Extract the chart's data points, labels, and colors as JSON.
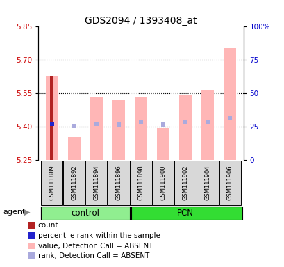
{
  "title": "GDS2094 / 1393408_at",
  "samples": [
    "GSM111889",
    "GSM111892",
    "GSM111894",
    "GSM111896",
    "GSM111898",
    "GSM111900",
    "GSM111902",
    "GSM111904",
    "GSM111906"
  ],
  "ylim_left": [
    5.25,
    5.85
  ],
  "ylim_right": [
    0,
    100
  ],
  "yticks_left": [
    5.25,
    5.4,
    5.55,
    5.7,
    5.85
  ],
  "yticks_right": [
    0,
    25,
    50,
    75,
    100
  ],
  "ytick_labels_right": [
    "0",
    "25",
    "50",
    "75",
    "100%"
  ],
  "dotted_lines": [
    5.4,
    5.55,
    5.7
  ],
  "bar_bottom": 5.25,
  "value_bars": [
    5.625,
    5.355,
    5.535,
    5.52,
    5.535,
    5.395,
    5.545,
    5.565,
    5.755
  ],
  "rank_markers": [
    5.415,
    5.405,
    5.415,
    5.41,
    5.42,
    5.41,
    5.42,
    5.42,
    5.44
  ],
  "count_bar_height": 5.625,
  "count_color": "#b22222",
  "value_bar_color": "#ffb6b6",
  "rank_marker_color": "#aaaadd",
  "blue_marker_value": 5.415,
  "blue_marker_color": "#2222cc",
  "control_color": "#90ee90",
  "pcn_color": "#33dd33",
  "label_color_left": "#cc0000",
  "label_color_right": "#0000cc",
  "control_indices": [
    0,
    1,
    2,
    3
  ],
  "pcn_indices": [
    4,
    5,
    6,
    7,
    8
  ],
  "legend_items": [
    {
      "color": "#b22222",
      "label": "count"
    },
    {
      "color": "#2222cc",
      "label": "percentile rank within the sample"
    },
    {
      "color": "#ffb6b6",
      "label": "value, Detection Call = ABSENT"
    },
    {
      "color": "#aaaadd",
      "label": "rank, Detection Call = ABSENT"
    }
  ]
}
